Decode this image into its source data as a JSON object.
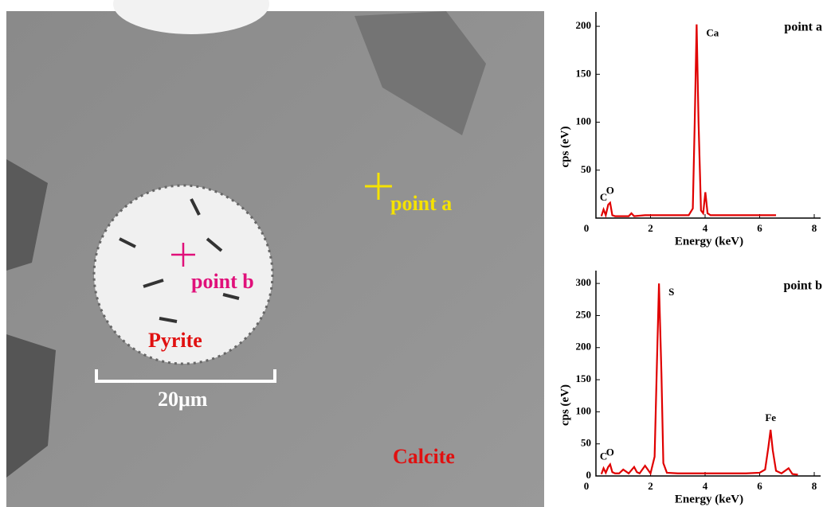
{
  "image": {
    "point_a": "point a",
    "point_b": "point b",
    "pyrite": "Pyrite",
    "scale": "20μm",
    "calcite": "Calcite"
  },
  "chart_data": [
    {
      "type": "line",
      "title": "point a",
      "x_label": "Energy (keV)",
      "y_label": "cps (eV)",
      "color": "#e00000",
      "xlim": [
        0,
        8
      ],
      "ylim": [
        0,
        215
      ],
      "xticks": [
        0,
        2,
        4,
        6,
        8
      ],
      "yticks": [
        50,
        100,
        150,
        200
      ],
      "x": [
        0.2,
        0.28,
        0.36,
        0.45,
        0.52,
        0.6,
        0.7,
        0.9,
        1.2,
        1.3,
        1.4,
        1.8,
        2.5,
        3.0,
        3.4,
        3.55,
        3.62,
        3.69,
        3.76,
        3.85,
        3.93,
        4.01,
        4.09,
        4.2,
        4.5,
        5.5,
        6.6
      ],
      "values": [
        2,
        9,
        3,
        14,
        16,
        3,
        2,
        2,
        2,
        5,
        2,
        3,
        3,
        3,
        3,
        10,
        100,
        202,
        100,
        8,
        5,
        27,
        5,
        3,
        3,
        3,
        3
      ],
      "annotations": [
        {
          "text": "C",
          "x": 0.28,
          "y": 9
        },
        {
          "text": "O",
          "x": 0.52,
          "y": 16
        },
        {
          "text": "Ca",
          "x": 3.69,
          "y": 202
        }
      ]
    },
    {
      "type": "line",
      "title": "point b",
      "x_label": "Energy (keV)",
      "y_label": "cps (eV)",
      "color": "#e00000",
      "xlim": [
        0,
        8
      ],
      "ylim": [
        0,
        320
      ],
      "xticks": [
        0,
        2,
        4,
        6,
        8
      ],
      "yticks": [
        0,
        50,
        100,
        150,
        200,
        250,
        300
      ],
      "x": [
        0.2,
        0.28,
        0.36,
        0.45,
        0.52,
        0.6,
        0.7,
        0.85,
        1.0,
        1.2,
        1.4,
        1.5,
        1.6,
        1.8,
        2.0,
        2.15,
        2.22,
        2.31,
        2.4,
        2.47,
        2.6,
        3.0,
        4.0,
        4.5,
        5.0,
        5.5,
        6.0,
        6.2,
        6.32,
        6.4,
        6.48,
        6.6,
        6.8,
        7.06,
        7.2,
        7.4
      ],
      "values": [
        3,
        12,
        5,
        14,
        18,
        6,
        4,
        4,
        10,
        4,
        14,
        6,
        4,
        16,
        4,
        30,
        150,
        300,
        160,
        20,
        5,
        4,
        4,
        4,
        4,
        4,
        5,
        10,
        45,
        72,
        40,
        8,
        4,
        12,
        3,
        2
      ],
      "annotations": [
        {
          "text": "C",
          "x": 0.28,
          "y": 12
        },
        {
          "text": "O",
          "x": 0.52,
          "y": 18
        },
        {
          "text": "S",
          "x": 2.31,
          "y": 300
        },
        {
          "text": "Fe",
          "x": 6.4,
          "y": 72
        }
      ]
    }
  ]
}
